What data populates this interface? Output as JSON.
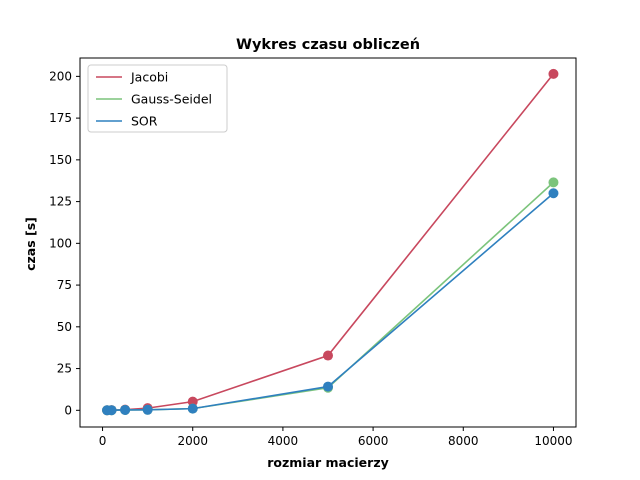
{
  "chart_data": {
    "type": "line",
    "title": "Wykres czasu obliczeń",
    "xlabel": "rozmiar macierzy",
    "ylabel": "czas [s]",
    "xlim": [
      -500,
      10500
    ],
    "ylim": [
      -10,
      211
    ],
    "xticks": [
      0,
      2000,
      4000,
      6000,
      8000,
      10000
    ],
    "yticks": [
      0,
      25,
      50,
      75,
      100,
      125,
      150,
      175,
      200
    ],
    "grid": false,
    "legend_position": "top-left",
    "x": [
      100,
      200,
      500,
      1000,
      2000,
      5000,
      10000
    ],
    "series": [
      {
        "name": "Jacobi",
        "color": "#c8485e",
        "values": [
          0.02,
          0.1,
          0.4,
          1.3,
          5.2,
          32.8,
          201.5
        ]
      },
      {
        "name": "Gauss-Seidel",
        "color": "#7cc47c",
        "values": [
          0.01,
          0.05,
          0.2,
          0.3,
          1.0,
          13.5,
          136.5
        ]
      },
      {
        "name": "SOR",
        "color": "#2f80bf",
        "values": [
          0.01,
          0.05,
          0.2,
          0.3,
          1.0,
          14.2,
          130.0
        ]
      }
    ]
  }
}
